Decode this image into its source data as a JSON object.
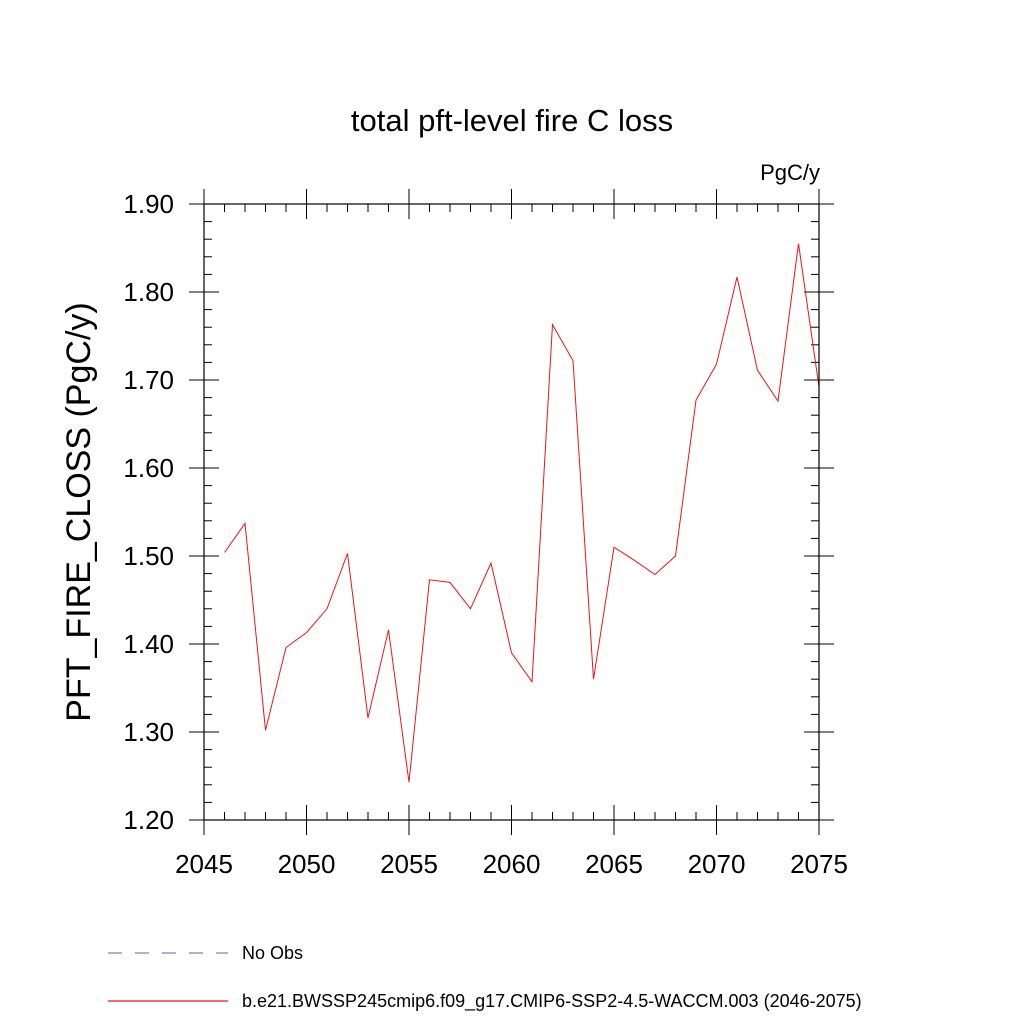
{
  "chart_data": {
    "type": "line",
    "title": "total pft-level fire C loss",
    "units": "PgC/y",
    "ylabel": "PFT_FIRE_CLOSS  (PgC/y)",
    "xlabel": "",
    "xlim": [
      2045,
      2075
    ],
    "ylim": [
      1.2,
      1.9
    ],
    "x_major_ticks": [
      2045,
      2050,
      2055,
      2060,
      2065,
      2070,
      2075
    ],
    "x_tick_labels": [
      "2045",
      "2050",
      "2055",
      "2060",
      "2065",
      "2070",
      "2075"
    ],
    "y_major_ticks": [
      1.2,
      1.3,
      1.4,
      1.5,
      1.6,
      1.7,
      1.8,
      1.9
    ],
    "y_tick_labels": [
      "1.20",
      "1.30",
      "1.40",
      "1.50",
      "1.60",
      "1.70",
      "1.80",
      "1.90"
    ],
    "x_minor_step": 1,
    "y_minor_step": 0.02,
    "grid": false,
    "legend_position": "bottom",
    "series": [
      {
        "name": "b.e21.BWSSP245cmip6.f09_g17.CMIP6-SSP2-4.5-WACCM.003 (2046-2075)",
        "color": "#e8161b",
        "style": "solid",
        "x": [
          2046,
          2047,
          2048,
          2049,
          2050,
          2051,
          2052,
          2053,
          2054,
          2055,
          2056,
          2057,
          2058,
          2059,
          2060,
          2061,
          2062,
          2063,
          2064,
          2065,
          2066,
          2067,
          2068,
          2069,
          2070,
          2071,
          2072,
          2073,
          2074,
          2075
        ],
        "values": [
          1.504,
          1.537,
          1.302,
          1.396,
          1.413,
          1.44,
          1.503,
          1.316,
          1.416,
          1.243,
          1.473,
          1.47,
          1.44,
          1.492,
          1.39,
          1.357,
          1.763,
          1.722,
          1.36,
          1.51,
          1.495,
          1.479,
          1.5,
          1.677,
          1.718,
          1.817,
          1.711,
          1.676,
          1.855,
          1.692
        ]
      }
    ],
    "legend": [
      {
        "label": "No Obs",
        "color": "#8080c0",
        "style": "dashed"
      },
      {
        "label": "b.e21.BWSSP245cmip6.f09_g17.CMIP6-SSP2-4.5-WACCM.003 (2046-2075)",
        "color": "#e8161b",
        "style": "solid"
      }
    ]
  }
}
